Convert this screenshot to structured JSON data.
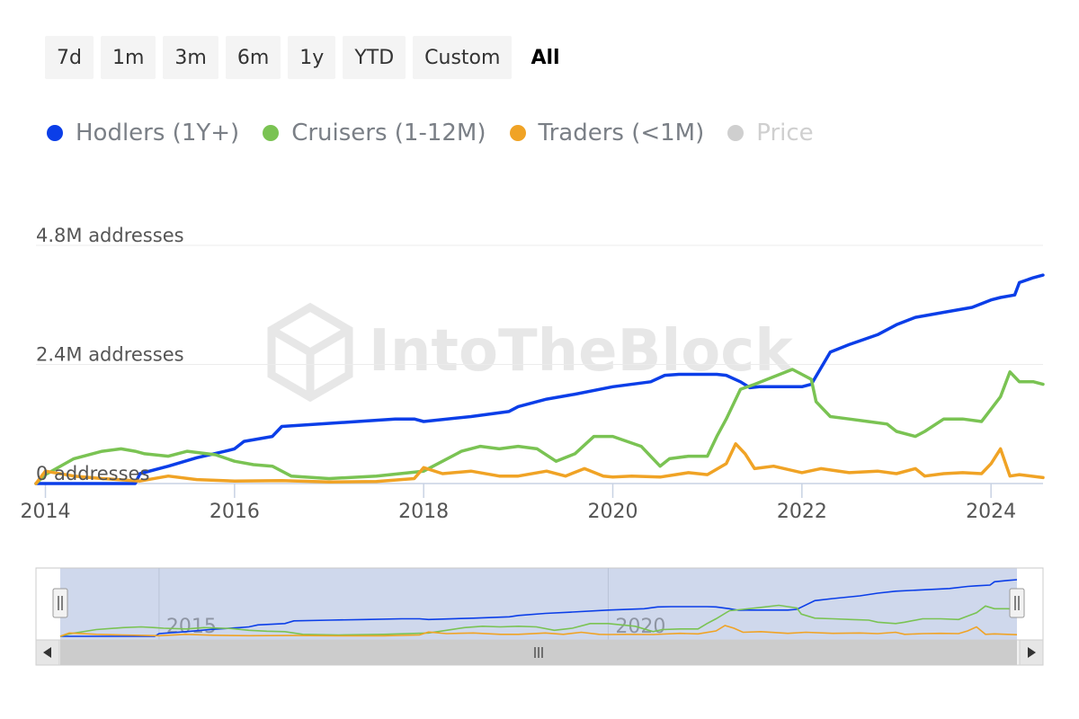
{
  "range_buttons": {
    "items": [
      "7d",
      "1m",
      "3m",
      "6m",
      "1y",
      "YTD",
      "Custom",
      "All"
    ],
    "active": "All"
  },
  "legend": {
    "items": [
      {
        "label": "Hodlers (1Y+)",
        "color": "#0b3ee8",
        "visible": true
      },
      {
        "label": "Cruisers (1-12M)",
        "color": "#7ac353",
        "visible": true
      },
      {
        "label": "Traders (<1M)",
        "color": "#f0a325",
        "visible": true
      },
      {
        "label": "Price",
        "color": "#cfcfcf",
        "visible": false
      }
    ]
  },
  "watermark": "IntoTheBlock",
  "navigator": {
    "tick_labels": [
      "2015",
      "2020"
    ],
    "scroll_left_icon": "triangle-left-icon",
    "scroll_right_icon": "triangle-right-icon",
    "scroll_thumb_icon": "grip-lines-icon"
  },
  "chart_data": {
    "type": "line",
    "y_tick_labels": [
      "0 addresses",
      "2.4M addresses",
      "4.8M addresses"
    ],
    "y_ticks": [
      0,
      2400000,
      4800000
    ],
    "ylim": [
      0,
      4800000
    ],
    "x_tick_labels": [
      "2014",
      "2016",
      "2018",
      "2020",
      "2022",
      "2024"
    ],
    "xlim": [
      2013.9,
      2024.55
    ],
    "grid": "horizontal",
    "series": [
      {
        "name": "Hodlers (1Y+)",
        "color": "#0b3ee8",
        "x": [
          2013.9,
          2014.5,
          2014.95,
          2015.0,
          2015.3,
          2015.6,
          2015.9,
          2016.0,
          2016.1,
          2016.4,
          2016.5,
          2016.9,
          2017.3,
          2017.7,
          2017.9,
          2018.0,
          2018.5,
          2018.9,
          2019.0,
          2019.3,
          2019.6,
          2020.0,
          2020.4,
          2020.55,
          2020.7,
          2021.0,
          2021.1,
          2021.2,
          2021.35,
          2021.45,
          2021.55,
          2021.8,
          2022.0,
          2022.1,
          2022.3,
          2022.5,
          2022.8,
          2023.0,
          2023.2,
          2023.5,
          2023.8,
          2024.0,
          2024.1,
          2024.25,
          2024.3,
          2024.45,
          2024.55
        ],
        "y": [
          0,
          0,
          0,
          200000,
          350000,
          520000,
          650000,
          700000,
          850000,
          950000,
          1150000,
          1200000,
          1250000,
          1300000,
          1300000,
          1250000,
          1350000,
          1450000,
          1550000,
          1700000,
          1800000,
          1950000,
          2050000,
          2180000,
          2200000,
          2200000,
          2200000,
          2180000,
          2050000,
          1930000,
          1950000,
          1950000,
          1950000,
          2000000,
          2650000,
          2800000,
          3000000,
          3200000,
          3350000,
          3450000,
          3550000,
          3700000,
          3750000,
          3800000,
          4050000,
          4150000,
          4200000
        ]
      },
      {
        "name": "Cruisers (1-12M)",
        "color": "#7ac353",
        "x": [
          2013.9,
          2014.0,
          2014.3,
          2014.6,
          2014.8,
          2014.95,
          2015.05,
          2015.3,
          2015.5,
          2015.8,
          2016.0,
          2016.2,
          2016.4,
          2016.6,
          2017.0,
          2017.5,
          2018.0,
          2018.2,
          2018.4,
          2018.6,
          2018.8,
          2019.0,
          2019.2,
          2019.4,
          2019.6,
          2019.8,
          2020.0,
          2020.3,
          2020.5,
          2020.6,
          2020.8,
          2021.0,
          2021.1,
          2021.2,
          2021.35,
          2021.5,
          2021.7,
          2021.9,
          2022.0,
          2022.1,
          2022.15,
          2022.3,
          2022.5,
          2022.7,
          2022.9,
          2023.0,
          2023.2,
          2023.3,
          2023.5,
          2023.7,
          2023.9,
          2024.0,
          2024.1,
          2024.2,
          2024.3,
          2024.45,
          2024.55
        ],
        "y": [
          0,
          180000,
          500000,
          650000,
          700000,
          650000,
          600000,
          550000,
          650000,
          580000,
          450000,
          380000,
          350000,
          150000,
          100000,
          150000,
          250000,
          450000,
          650000,
          750000,
          700000,
          750000,
          700000,
          450000,
          600000,
          950000,
          950000,
          750000,
          350000,
          500000,
          550000,
          550000,
          950000,
          1300000,
          1900000,
          2000000,
          2150000,
          2300000,
          2200000,
          2100000,
          1650000,
          1350000,
          1300000,
          1250000,
          1200000,
          1050000,
          950000,
          1050000,
          1300000,
          1300000,
          1250000,
          1500000,
          1750000,
          2250000,
          2050000,
          2050000,
          2000000
        ]
      },
      {
        "name": "Traders (<1M)",
        "color": "#f0a325",
        "x": [
          2013.9,
          2014.0,
          2014.3,
          2014.6,
          2015.0,
          2015.3,
          2015.6,
          2016.0,
          2016.5,
          2017.0,
          2017.5,
          2017.9,
          2018.0,
          2018.2,
          2018.5,
          2018.8,
          2019.0,
          2019.3,
          2019.5,
          2019.7,
          2019.9,
          2020.0,
          2020.2,
          2020.5,
          2020.8,
          2021.0,
          2021.2,
          2021.3,
          2021.4,
          2021.5,
          2021.7,
          2022.0,
          2022.2,
          2022.5,
          2022.8,
          2023.0,
          2023.2,
          2023.3,
          2023.5,
          2023.7,
          2023.9,
          2024.0,
          2024.1,
          2024.2,
          2024.3,
          2024.55
        ],
        "y": [
          0,
          250000,
          150000,
          100000,
          50000,
          150000,
          80000,
          50000,
          60000,
          30000,
          40000,
          100000,
          320000,
          200000,
          250000,
          150000,
          150000,
          250000,
          150000,
          300000,
          150000,
          130000,
          150000,
          130000,
          220000,
          180000,
          400000,
          800000,
          600000,
          300000,
          350000,
          220000,
          300000,
          220000,
          250000,
          200000,
          300000,
          150000,
          200000,
          220000,
          200000,
          400000,
          700000,
          150000,
          180000,
          120000
        ]
      }
    ]
  }
}
